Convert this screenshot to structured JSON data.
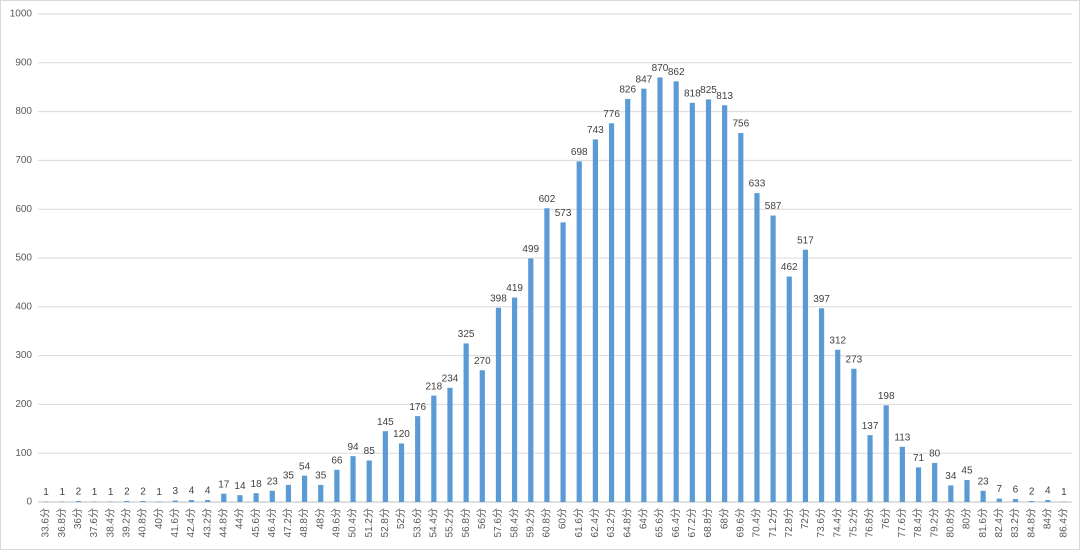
{
  "chart_data": {
    "type": "bar",
    "categories": [
      "33.6分",
      "36.8分",
      "36分",
      "37.6分",
      "38.4分",
      "39.2分",
      "40.8分",
      "40分",
      "41.6分",
      "42.4分",
      "43.2分",
      "44.8分",
      "44分",
      "45.6分",
      "46.4分",
      "47.2分",
      "48.8分",
      "48分",
      "49.6分",
      "50.4分",
      "51.2分",
      "52.8分",
      "52分",
      "53.6分",
      "54.4分",
      "55.2分",
      "56.8分",
      "56分",
      "57.6分",
      "58.4分",
      "59.2分",
      "60.8分",
      "60分",
      "61.6分",
      "62.4分",
      "63.2分",
      "64.8分",
      "64分",
      "65.6分",
      "66.4分",
      "67.2分",
      "68.8分",
      "68分",
      "69.6分",
      "70.4分",
      "71.2分",
      "72.8分",
      "72分",
      "73.6分",
      "74.4分",
      "75.2分",
      "76.8分",
      "76分",
      "77.6分",
      "78.4分",
      "79.2分",
      "80.8分",
      "80分",
      "81.6分",
      "82.4分",
      "83.2分",
      "84.8分",
      "84分",
      "86.4分"
    ],
    "values": [
      1,
      1,
      2,
      1,
      1,
      2,
      2,
      1,
      3,
      4,
      4,
      17,
      14,
      18,
      23,
      35,
      54,
      35,
      66,
      94,
      85,
      145,
      120,
      176,
      218,
      234,
      325,
      270,
      398,
      419,
      499,
      602,
      573,
      698,
      743,
      776,
      826,
      847,
      870,
      862,
      818,
      825,
      813,
      756,
      633,
      587,
      462,
      517,
      397,
      312,
      273,
      137,
      198,
      113,
      71,
      80,
      34,
      45,
      23,
      7,
      6,
      2,
      4,
      1
    ],
    "color": "#5b9bd5",
    "ylim": [
      0,
      1000
    ],
    "yticks": [
      0,
      100,
      200,
      300,
      400,
      500,
      600,
      700,
      800,
      900,
      1000
    ],
    "grid": true
  }
}
